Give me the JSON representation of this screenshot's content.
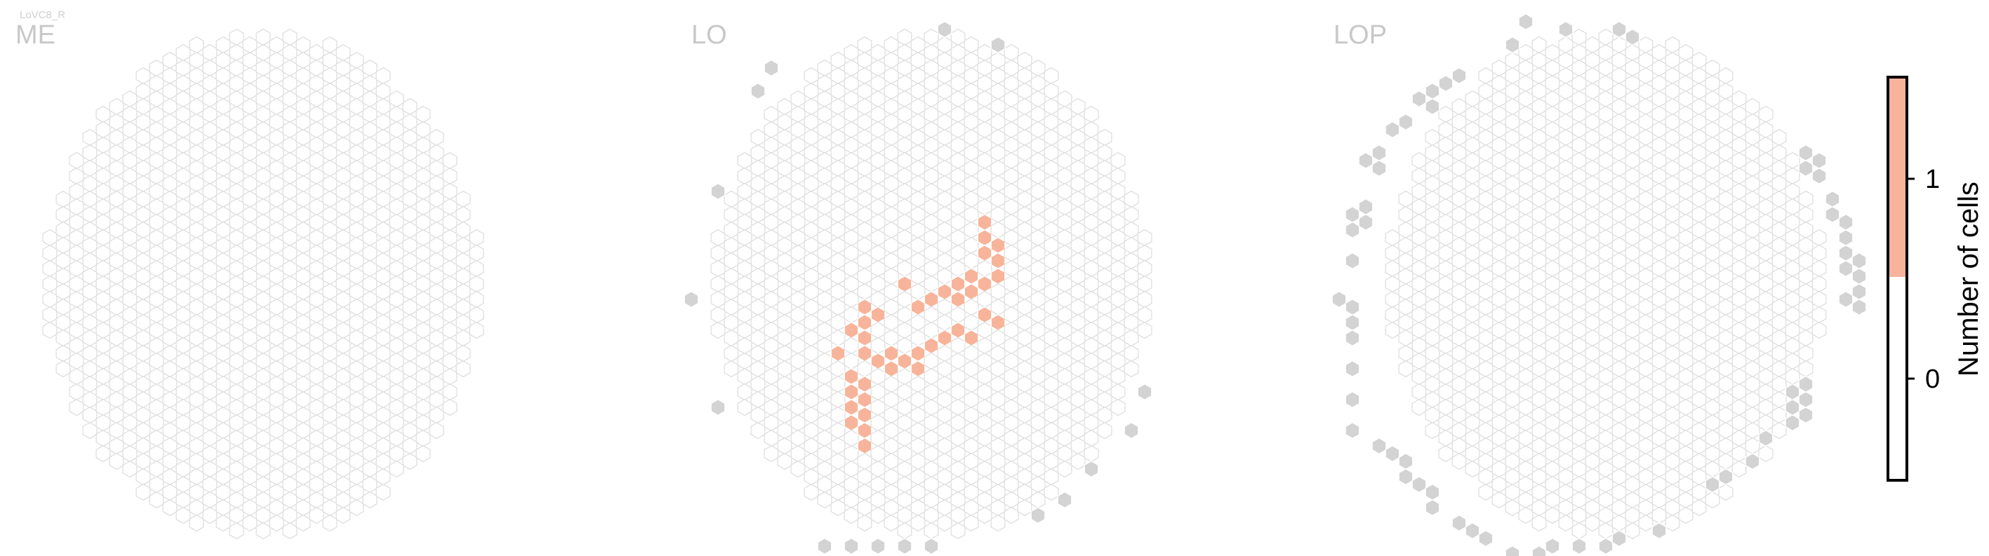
{
  "cell_type": "LoVC8_R",
  "colors": {
    "empty_fill": "#ffffff",
    "empty_stroke": "#dcdcdc",
    "one_fill": "#f7b49a",
    "one_stroke": "#ffffff",
    "outside_fill": "#d3d3d3",
    "outside_stroke": "#ffffff",
    "title": "#c8c8c8"
  },
  "chart_data": [
    {
      "type": "heatmap",
      "title": "ME",
      "nonzero_cells": [],
      "outside_cells": []
    },
    {
      "type": "heatmap",
      "title": "LO",
      "nonzero_cells": [
        {
          "col": 4,
          "row": -4,
          "value": 1
        },
        {
          "col": 4,
          "row": -3,
          "value": 1
        },
        {
          "col": 5,
          "row": -3,
          "value": 1
        },
        {
          "col": 4,
          "row": -2,
          "value": 1
        },
        {
          "col": 5,
          "row": -2,
          "value": 1
        },
        {
          "col": 3,
          "row": -1,
          "value": 1
        },
        {
          "col": 5,
          "row": -1,
          "value": 1
        },
        {
          "col": 2,
          "row": 0,
          "value": 1
        },
        {
          "col": 3,
          "row": 0,
          "value": 1
        },
        {
          "col": 4,
          "row": 0,
          "value": 1
        },
        {
          "col": 1,
          "row": 0,
          "value": 1
        },
        {
          "col": 0,
          "row": 1,
          "value": 1
        },
        {
          "col": 2,
          "row": 1,
          "value": 1
        },
        {
          "col": -1,
          "row": 1,
          "value": 1
        },
        {
          "col": -2,
          "row": 0,
          "value": 1
        },
        {
          "col": -5,
          "row": 1,
          "value": 1
        },
        {
          "col": -5,
          "row": 2,
          "value": 1
        },
        {
          "col": -4,
          "row": 2,
          "value": 1
        },
        {
          "col": -6,
          "row": 3,
          "value": 1
        },
        {
          "col": -5,
          "row": 3,
          "value": 1
        },
        {
          "col": -7,
          "row": 4,
          "value": 1
        },
        {
          "col": -5,
          "row": 4,
          "value": 1
        },
        {
          "col": -4,
          "row": 5,
          "value": 1
        },
        {
          "col": -3,
          "row": 5,
          "value": 1
        },
        {
          "col": -2,
          "row": 5,
          "value": 1
        },
        {
          "col": -1,
          "row": 4,
          "value": 1
        },
        {
          "col": -1,
          "row": 5,
          "value": 1
        },
        {
          "col": 0,
          "row": 4,
          "value": 1
        },
        {
          "col": 1,
          "row": 3,
          "value": 1
        },
        {
          "col": 2,
          "row": 3,
          "value": 1
        },
        {
          "col": 3,
          "row": 3,
          "value": 1
        },
        {
          "col": 4,
          "row": 2,
          "value": 1
        },
        {
          "col": 5,
          "row": 2,
          "value": 1
        },
        {
          "col": -3,
          "row": 4,
          "value": 1
        },
        {
          "col": -5,
          "row": 6,
          "value": 1
        },
        {
          "col": -6,
          "row": 6,
          "value": 1
        },
        {
          "col": -5,
          "row": 7,
          "value": 1
        },
        {
          "col": -6,
          "row": 7,
          "value": 1
        },
        {
          "col": -5,
          "row": 8,
          "value": 1
        },
        {
          "col": -6,
          "row": 8,
          "value": 1
        },
        {
          "col": -5,
          "row": 9,
          "value": 1
        },
        {
          "col": -6,
          "row": 9,
          "value": 1
        },
        {
          "col": -5,
          "row": 10,
          "value": 1
        }
      ],
      "outside_cells": [
        {
          "col": 1,
          "row": -17
        },
        {
          "col": 5,
          "row": -16
        },
        {
          "col": -13,
          "row": -13
        },
        {
          "col": -12,
          "row": -14
        },
        {
          "col": -16,
          "row": -6
        },
        {
          "col": -18,
          "row": 1
        },
        {
          "col": -16,
          "row": 8
        },
        {
          "col": 16,
          "row": 7
        },
        {
          "col": 15,
          "row": 9
        },
        {
          "col": 12,
          "row": 12
        },
        {
          "col": 10,
          "row": 14
        },
        {
          "col": 8,
          "row": 15
        },
        {
          "col": -8,
          "row": 17
        },
        {
          "col": -6,
          "row": 17
        },
        {
          "col": -4,
          "row": 17
        },
        {
          "col": -2,
          "row": 17
        },
        {
          "col": 0,
          "row": 17
        }
      ]
    },
    {
      "type": "heatmap",
      "title": "LOP",
      "nonzero_cells": [],
      "outside_cells": [
        {
          "col": -7,
          "row": -16
        },
        {
          "col": -6,
          "row": -17
        },
        {
          "col": -3,
          "row": -17
        },
        {
          "col": 1,
          "row": -17
        },
        {
          "col": 2,
          "row": -16
        },
        {
          "col": -11,
          "row": -14
        },
        {
          "col": -12,
          "row": -13
        },
        {
          "col": -13,
          "row": -13
        },
        {
          "col": -14,
          "row": -12
        },
        {
          "col": -13,
          "row": -12
        },
        {
          "col": -15,
          "row": -11
        },
        {
          "col": -16,
          "row": -10
        },
        {
          "col": -17,
          "row": -9
        },
        {
          "col": -18,
          "row": -8
        },
        {
          "col": -17,
          "row": -8
        },
        {
          "col": -19,
          "row": -5
        },
        {
          "col": -18,
          "row": -5
        },
        {
          "col": -19,
          "row": -4
        },
        {
          "col": -18,
          "row": -4
        },
        {
          "col": -19,
          "row": -2
        },
        {
          "col": -20,
          "row": 1
        },
        {
          "col": -19,
          "row": 1
        },
        {
          "col": -19,
          "row": 2
        },
        {
          "col": -19,
          "row": 3
        },
        {
          "col": -19,
          "row": 5
        },
        {
          "col": -19,
          "row": 7
        },
        {
          "col": -19,
          "row": 9
        },
        {
          "col": -17,
          "row": 10
        },
        {
          "col": -16,
          "row": 11
        },
        {
          "col": -15,
          "row": 11
        },
        {
          "col": -15,
          "row": 12
        },
        {
          "col": -14,
          "row": 13
        },
        {
          "col": -13,
          "row": 13
        },
        {
          "col": -13,
          "row": 14
        },
        {
          "col": -11,
          "row": 15
        },
        {
          "col": -10,
          "row": 16
        },
        {
          "col": -9,
          "row": 16
        },
        {
          "col": -7,
          "row": 17
        },
        {
          "col": -5,
          "row": 17
        },
        {
          "col": -4,
          "row": 17
        },
        {
          "col": -2,
          "row": 17
        },
        {
          "col": 0,
          "row": 17
        },
        {
          "col": 1,
          "row": 16
        },
        {
          "col": 4,
          "row": 16
        },
        {
          "col": 8,
          "row": 13
        },
        {
          "col": 9,
          "row": 12
        },
        {
          "col": 11,
          "row": 11
        },
        {
          "col": 12,
          "row": 10
        },
        {
          "col": 14,
          "row": 9
        },
        {
          "col": 14,
          "row": 8
        },
        {
          "col": 15,
          "row": 8
        },
        {
          "col": 15,
          "row": 7
        },
        {
          "col": 14,
          "row": 7
        },
        {
          "col": 15,
          "row": 6
        },
        {
          "col": 19,
          "row": 1
        },
        {
          "col": 18,
          "row": 1
        },
        {
          "col": 19,
          "row": 0
        },
        {
          "col": 18,
          "row": -1
        },
        {
          "col": 19,
          "row": -1
        },
        {
          "col": 18,
          "row": -2
        },
        {
          "col": 19,
          "row": -2
        },
        {
          "col": 18,
          "row": -3
        },
        {
          "col": 18,
          "row": -4
        },
        {
          "col": 17,
          "row": -5
        },
        {
          "col": 17,
          "row": -6
        },
        {
          "col": 16,
          "row": -7
        },
        {
          "col": 15,
          "row": -8
        },
        {
          "col": 16,
          "row": -8
        },
        {
          "col": 15,
          "row": -9
        }
      ]
    },
    {
      "type": "colorbar",
      "title": "Number of cells",
      "ticks": [
        {
          "value": 0,
          "label": "0"
        },
        {
          "value": 1,
          "label": "1"
        }
      ],
      "range": [
        -0.5,
        1.5
      ],
      "bins": [
        {
          "from": -0.5,
          "to": 0.5,
          "color": "#ffffff"
        },
        {
          "from": 0.5,
          "to": 1.5,
          "color": "#f7b49a"
        }
      ]
    }
  ]
}
